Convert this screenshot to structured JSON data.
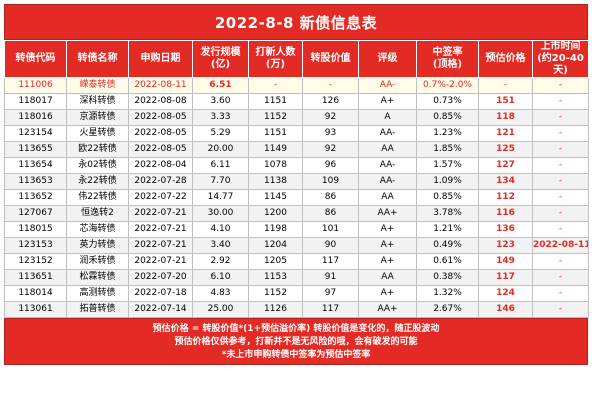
{
  "title": "2022-8-8 新债信息表",
  "columns": [
    {
      "line1": "转债代码",
      "line2": ""
    },
    {
      "line1": "转债名称",
      "line2": ""
    },
    {
      "line1": "申购日期",
      "line2": ""
    },
    {
      "line1": "发行规模",
      "line2": "(亿)"
    },
    {
      "line1": "打新人数",
      "line2": "(万)"
    },
    {
      "line1": "转股价值",
      "line2": ""
    },
    {
      "line1": "评级",
      "line2": ""
    },
    {
      "line1": "中签率",
      "line2": "(顶格)"
    },
    {
      "line1": "预估价格",
      "line2": ""
    },
    {
      "line1": "上市时间",
      "line2": "(约20-40天)"
    }
  ],
  "rows": [
    {
      "code": "111006",
      "name": "嵘泰转债",
      "date": "2022-08-11",
      "size": "6.51",
      "subscribers": "-",
      "conv_value": "-",
      "rating": "AA-",
      "win_rate": "0.7%-2.0%",
      "est_price": "-",
      "listing": "-"
    },
    {
      "code": "118017",
      "name": "深科转债",
      "date": "2022-08-08",
      "size": "3.60",
      "subscribers": "1151",
      "conv_value": "126",
      "rating": "A+",
      "win_rate": "0.73%",
      "est_price": "151",
      "listing": "-"
    },
    {
      "code": "118016",
      "name": "京源转债",
      "date": "2022-08-05",
      "size": "3.33",
      "subscribers": "1152",
      "conv_value": "92",
      "rating": "A",
      "win_rate": "0.85%",
      "est_price": "118",
      "listing": "-"
    },
    {
      "code": "123154",
      "name": "火星转债",
      "date": "2022-08-05",
      "size": "5.29",
      "subscribers": "1151",
      "conv_value": "93",
      "rating": "AA-",
      "win_rate": "1.23%",
      "est_price": "121",
      "listing": "-"
    },
    {
      "code": "113655",
      "name": "欧22转债",
      "date": "2022-08-05",
      "size": "20.00",
      "subscribers": "1149",
      "conv_value": "92",
      "rating": "AA",
      "win_rate": "1.85%",
      "est_price": "125",
      "listing": "-"
    },
    {
      "code": "113654",
      "name": "永02转债",
      "date": "2022-08-04",
      "size": "6.11",
      "subscribers": "1078",
      "conv_value": "96",
      "rating": "AA-",
      "win_rate": "1.57%",
      "est_price": "127",
      "listing": "-"
    },
    {
      "code": "113653",
      "name": "永22转债",
      "date": "2022-07-28",
      "size": "7.70",
      "subscribers": "1138",
      "conv_value": "109",
      "rating": "AA-",
      "win_rate": "1.09%",
      "est_price": "134",
      "listing": "-"
    },
    {
      "code": "113652",
      "name": "伟22转债",
      "date": "2022-07-22",
      "size": "14.77",
      "subscribers": "1145",
      "conv_value": "86",
      "rating": "AA",
      "win_rate": "0.85%",
      "est_price": "112",
      "listing": "-"
    },
    {
      "code": "127067",
      "name": "恒逸转2",
      "date": "2022-07-21",
      "size": "30.00",
      "subscribers": "1200",
      "conv_value": "86",
      "rating": "AA+",
      "win_rate": "3.78%",
      "est_price": "116",
      "listing": "-"
    },
    {
      "code": "118015",
      "name": "芯海转债",
      "date": "2022-07-21",
      "size": "4.10",
      "subscribers": "1198",
      "conv_value": "101",
      "rating": "A+",
      "win_rate": "1.21%",
      "est_price": "136",
      "listing": "-"
    },
    {
      "code": "123153",
      "name": "英力转债",
      "date": "2022-07-21",
      "size": "3.40",
      "subscribers": "1204",
      "conv_value": "90",
      "rating": "A+",
      "win_rate": "0.49%",
      "est_price": "123",
      "listing": "2022-08-11"
    },
    {
      "code": "123152",
      "name": "润禾转债",
      "date": "2022-07-21",
      "size": "2.92",
      "subscribers": "1205",
      "conv_value": "117",
      "rating": "A+",
      "win_rate": "0.61%",
      "est_price": "149",
      "listing": "-"
    },
    {
      "code": "113651",
      "name": "松霖转债",
      "date": "2022-07-20",
      "size": "6.10",
      "subscribers": "1153",
      "conv_value": "91",
      "rating": "AA",
      "win_rate": "0.38%",
      "est_price": "117",
      "listing": "-"
    },
    {
      "code": "118014",
      "name": "高测转债",
      "date": "2022-07-18",
      "size": "4.83",
      "subscribers": "1152",
      "conv_value": "97",
      "rating": "A+",
      "win_rate": "1.32%",
      "est_price": "124",
      "listing": "-"
    },
    {
      "code": "113061",
      "name": "拓普转债",
      "date": "2022-07-14",
      "size": "25.00",
      "subscribers": "1126",
      "conv_value": "117",
      "rating": "AA+",
      "win_rate": "2.67%",
      "est_price": "146",
      "listing": "-"
    }
  ],
  "footer": {
    "line1": "预估价格 = 转股价值*(1+预估溢价率) 转股价值是变化的，随正股波动",
    "line2": "预估价格仅供参考，打新并不是无风险的哦，会有破发的可能",
    "line3": "*未上市申购转债中签率为预估中签率"
  },
  "colors": {
    "header_red": "#e32a24",
    "alt_row_gray": "#f2f2f2",
    "highlight_row": "#fffbe9",
    "border": "#bfbfbf"
  }
}
